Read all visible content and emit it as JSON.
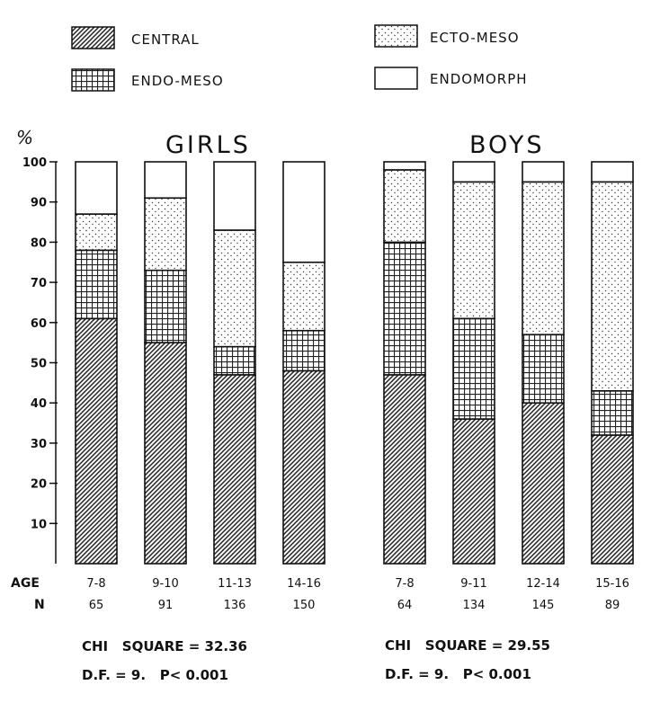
{
  "chart_data": {
    "type": "bar",
    "stacked": true,
    "ylabel": "%",
    "ylim": [
      0,
      100
    ],
    "yticks": [
      10,
      20,
      30,
      40,
      50,
      60,
      70,
      80,
      90,
      100
    ],
    "row_labels": {
      "age": "AGE",
      "n": "N"
    },
    "series": [
      {
        "name": "CENTRAL",
        "pattern": "diagonal-hatch"
      },
      {
        "name": "ENDO-MESO",
        "pattern": "grid"
      },
      {
        "name": "ECTO-MESO",
        "pattern": "stipple"
      },
      {
        "name": "ENDOMORPH",
        "pattern": "blank"
      }
    ],
    "groups": [
      {
        "title": "GIRLS",
        "bars": [
          {
            "age": "7-8",
            "n": "65",
            "values": [
              61,
              17,
              9,
              13
            ]
          },
          {
            "age": "9-10",
            "n": "91",
            "values": [
              55,
              18,
              18,
              9
            ]
          },
          {
            "age": "11-13",
            "n": "136",
            "values": [
              47,
              7,
              29,
              17
            ]
          },
          {
            "age": "14-16",
            "n": "150",
            "values": [
              48,
              10,
              17,
              25
            ]
          }
        ],
        "stats": {
          "chi": "CHI   SQUARE = 32.36",
          "df": "D.F. = 9.   P< 0.001"
        }
      },
      {
        "title": "BOYS",
        "bars": [
          {
            "age": "7-8",
            "n": "64",
            "values": [
              47,
              33,
              18,
              2
            ]
          },
          {
            "age": "9-11",
            "n": "134",
            "values": [
              36,
              25,
              34,
              5
            ]
          },
          {
            "age": "12-14",
            "n": "145",
            "values": [
              40,
              17,
              38,
              5
            ]
          },
          {
            "age": "15-16",
            "n": "89",
            "values": [
              32,
              11,
              52,
              5
            ]
          }
        ],
        "stats": {
          "chi": "CHI   SQUARE = 29.55",
          "df": "D.F. = 9.   P< 0.001"
        }
      }
    ]
  }
}
